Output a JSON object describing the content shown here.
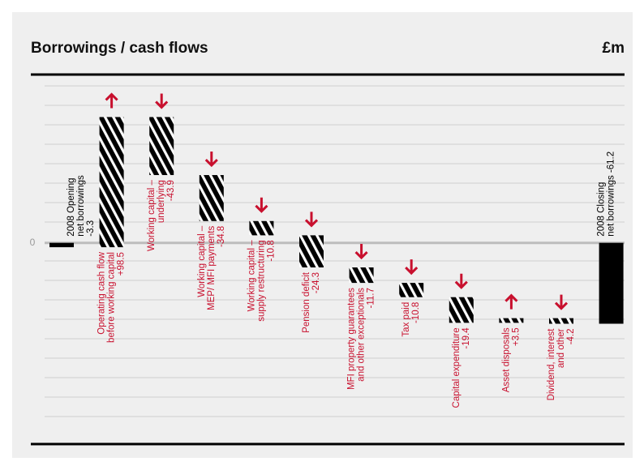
{
  "chart_data": {
    "type": "waterfall",
    "title": "Borrowings / cash flows",
    "unit": "£m",
    "categories": [
      [
        "2008 Opening",
        "net borrowings"
      ],
      [
        "Operating cash flow",
        "before working capital"
      ],
      [
        "Working capital –",
        "underlying"
      ],
      [
        "Working capital –",
        "MEP/ MFI payments"
      ],
      [
        "Working capital –",
        "supply restructuring"
      ],
      [
        "Pension deficit"
      ],
      [
        "MFI property guarantees",
        "and other exceptionals"
      ],
      [
        "Tax paid"
      ],
      [
        "Capital expenditure"
      ],
      [
        "Asset disposals"
      ],
      [
        "Dividend, interest",
        "and other"
      ],
      [
        "2008 Closing",
        "net borrowings -61.2"
      ]
    ],
    "values": [
      -3.3,
      98.5,
      -43.9,
      -34.8,
      -10.8,
      -24.3,
      -11.7,
      -10.8,
      -19.4,
      3.5,
      -4.2,
      -61.2
    ],
    "value_labels": [
      "-3.3",
      "+98.5",
      "-43.9",
      "-34.8",
      "-10.8",
      "-24.3",
      "-11.7",
      "-10.8",
      "-19.4",
      "+3.5",
      "-4.2",
      null
    ],
    "totals": [
      0,
      11
    ],
    "ylim": [
      -140,
      120
    ],
    "yticks": [
      0
    ],
    "bar_color": "#000000",
    "label_color": "#c8102e",
    "arrow_color": "#c8102e"
  }
}
